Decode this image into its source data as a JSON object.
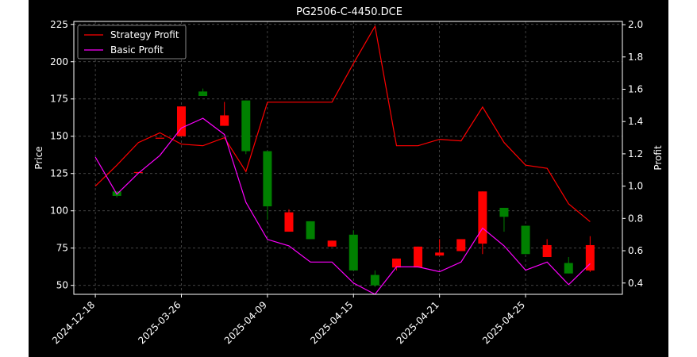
{
  "chart_data": {
    "type": "candlestick",
    "title": "PG2506-C-4450.DCE",
    "xlabel": "",
    "ylabel": "Price",
    "y2label": "Profit",
    "ylim": [
      44,
      227
    ],
    "y2lim": [
      0.33,
      2.02
    ],
    "yticks": [
      50,
      75,
      100,
      125,
      150,
      175,
      200,
      225
    ],
    "y2ticks": [
      0.4,
      0.6,
      0.8,
      1.0,
      1.2,
      1.4,
      1.6,
      1.8,
      2.0
    ],
    "xtick_labels": [
      "2024-12-18",
      "2025-03-26",
      "2025-04-09",
      "2025-04-15",
      "2025-04-21",
      "2025-04-25"
    ],
    "grid": true,
    "legend_position": "top-left",
    "colors": {
      "up": "#ff0000",
      "down": "#008000",
      "strategy": "#ff0000",
      "basic": "#ff00ff"
    },
    "candles": [
      {
        "x": 1,
        "open": 113,
        "close": 110,
        "high": 113,
        "low": 109
      },
      {
        "x": 2,
        "open": 126,
        "close": 126,
        "high": 126,
        "low": 126
      },
      {
        "x": 3,
        "open": 149,
        "close": 149,
        "high": 149,
        "low": 149
      },
      {
        "x": 4,
        "open": 150,
        "close": 170,
        "high": 170,
        "low": 150
      },
      {
        "x": 5,
        "open": 180,
        "close": 177,
        "high": 182,
        "low": 177
      },
      {
        "x": 6,
        "open": 157,
        "close": 164,
        "high": 173,
        "low": 157
      },
      {
        "x": 7,
        "open": 174,
        "close": 140,
        "high": 174,
        "low": 138
      },
      {
        "x": 8,
        "open": 140,
        "close": 103,
        "high": 140,
        "low": 94
      },
      {
        "x": 9,
        "open": 86,
        "close": 99,
        "high": 101,
        "low": 86
      },
      {
        "x": 10,
        "open": 93,
        "close": 81,
        "high": 93,
        "low": 81
      },
      {
        "x": 11,
        "open": 76,
        "close": 80,
        "high": 80,
        "low": 76
      },
      {
        "x": 12,
        "open": 84,
        "close": 60,
        "high": 87,
        "low": 60
      },
      {
        "x": 13,
        "open": 57,
        "close": 50,
        "high": 60,
        "low": 49
      },
      {
        "x": 14,
        "open": 62,
        "close": 68,
        "high": 68,
        "low": 60
      },
      {
        "x": 15,
        "open": 62,
        "close": 76,
        "high": 76,
        "low": 62
      },
      {
        "x": 16,
        "open": 70,
        "close": 72,
        "high": 81,
        "low": 70
      },
      {
        "x": 17,
        "open": 73,
        "close": 81,
        "high": 81,
        "low": 73
      },
      {
        "x": 18,
        "open": 78,
        "close": 113,
        "high": 113,
        "low": 71
      },
      {
        "x": 19,
        "open": 102,
        "close": 96,
        "high": 102,
        "low": 86
      },
      {
        "x": 20,
        "open": 90,
        "close": 71,
        "high": 90,
        "low": 71
      },
      {
        "x": 21,
        "open": 69,
        "close": 77,
        "high": 81,
        "low": 69
      },
      {
        "x": 22,
        "open": 65,
        "close": 58,
        "high": 69,
        "low": 58
      },
      {
        "x": 23,
        "open": 60,
        "close": 77,
        "high": 83,
        "low": 59
      }
    ],
    "series": [
      {
        "name": "Strategy Profit",
        "x": [
          0,
          1,
          2,
          3,
          4,
          5,
          6,
          7,
          8,
          9,
          10,
          11,
          12,
          13,
          14,
          15,
          16,
          17,
          18,
          19,
          20,
          21,
          22,
          23
        ],
        "values": [
          1.0,
          1.13,
          1.27,
          1.33,
          1.26,
          1.25,
          1.3,
          1.09,
          1.52,
          1.52,
          1.52,
          1.52,
          1.76,
          1.99,
          1.25,
          1.25,
          1.29,
          1.28,
          1.49,
          1.27,
          1.13,
          1.11,
          0.89,
          0.78
        ]
      },
      {
        "name": "Basic Profit",
        "x": [
          0,
          1,
          2,
          3,
          4,
          5,
          6,
          7,
          8,
          9,
          10,
          11,
          12,
          13,
          14,
          15,
          16,
          17,
          18,
          19,
          20,
          21,
          22,
          23
        ],
        "values": [
          1.18,
          0.95,
          1.08,
          1.19,
          1.36,
          1.42,
          1.32,
          0.9,
          0.67,
          0.63,
          0.53,
          0.53,
          0.4,
          0.33,
          0.5,
          0.5,
          0.47,
          0.53,
          0.74,
          0.63,
          0.48,
          0.53,
          0.39,
          0.52
        ]
      }
    ]
  }
}
